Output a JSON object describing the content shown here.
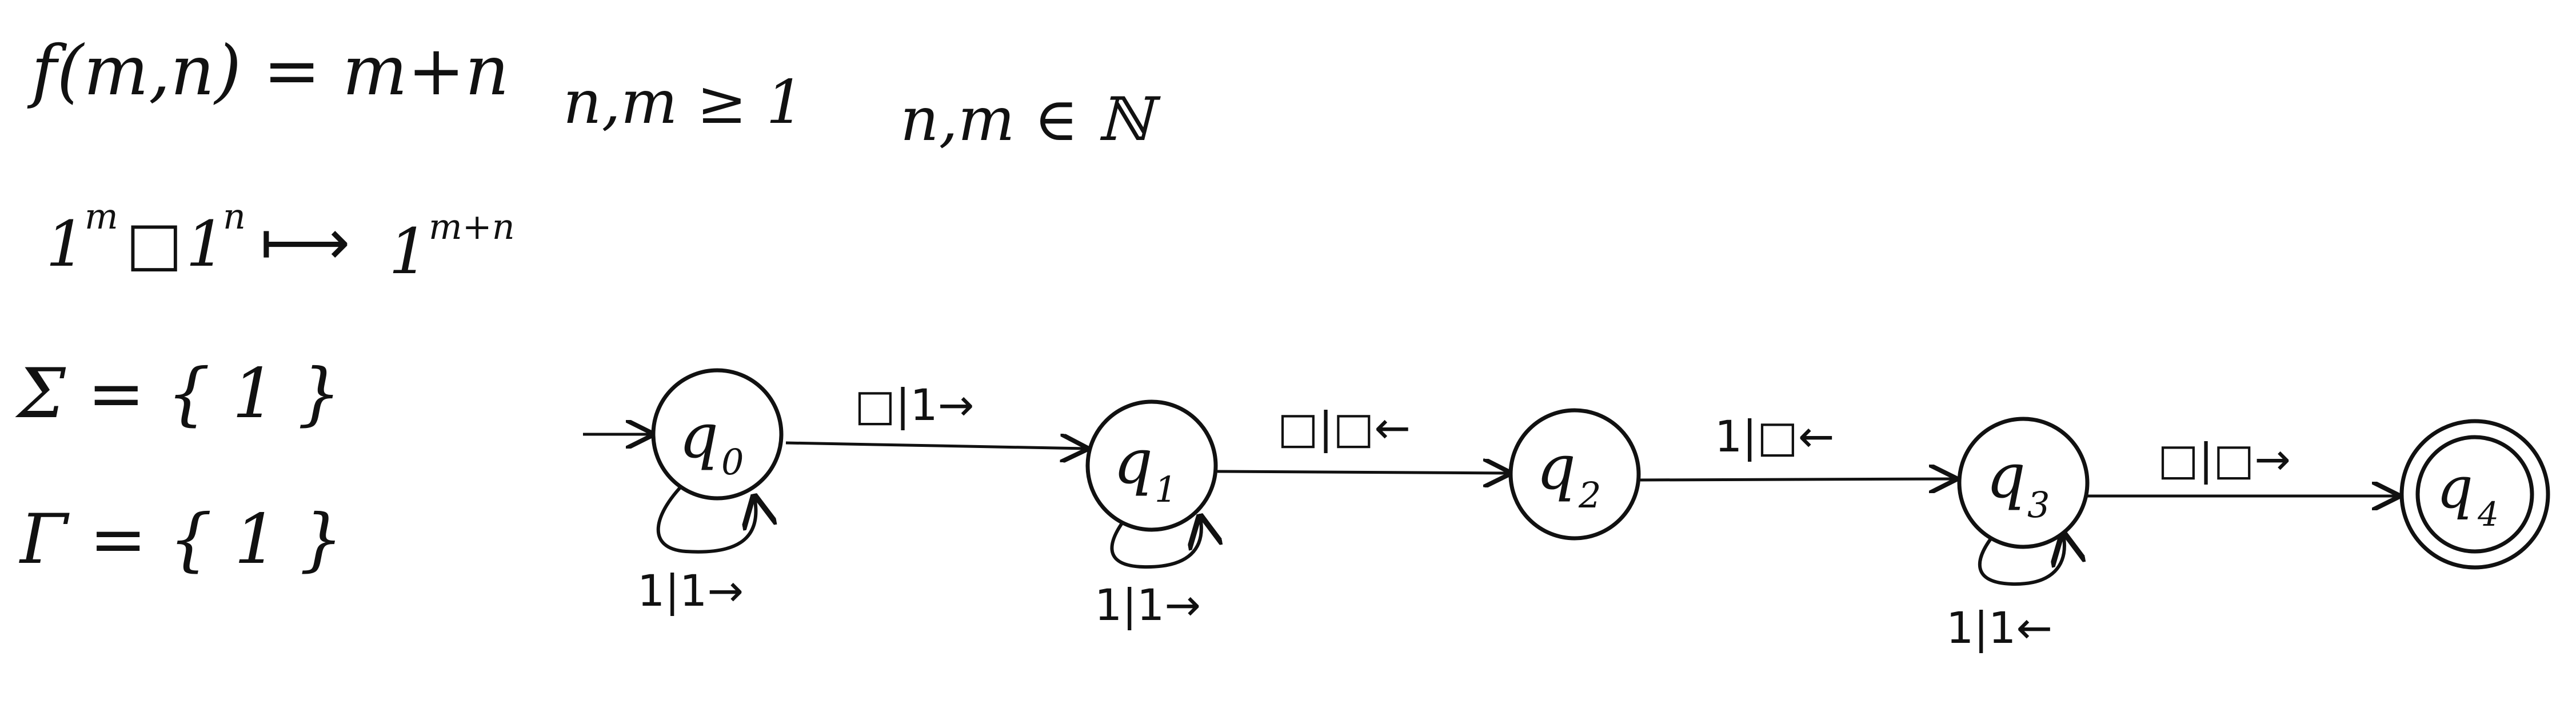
{
  "definitions": {
    "function": "f(m,n) = m+n",
    "domain_condition": "n,m ≥ 1",
    "membership": "n,m ∈ ℕ",
    "mapping": {
      "input_a": "1",
      "exp_m": "m",
      "blank": "□",
      "input_b": "1",
      "exp_n": "n",
      "arrow": "⟼",
      "output": "1",
      "exp_mn": "m+n"
    },
    "sigma": "Σ = { 1 }",
    "gamma": "Γ = { 1 }"
  },
  "machine": {
    "states": [
      {
        "id": "q0",
        "base": "q",
        "sub": "0",
        "start": true,
        "accept": false
      },
      {
        "id": "q1",
        "base": "q",
        "sub": "1",
        "start": false,
        "accept": false
      },
      {
        "id": "q2",
        "base": "q",
        "sub": "2",
        "start": false,
        "accept": false
      },
      {
        "id": "q3",
        "base": "q",
        "sub": "3",
        "start": false,
        "accept": false
      },
      {
        "id": "q4",
        "base": "q",
        "sub": "4",
        "start": false,
        "accept": true
      }
    ],
    "transitions": [
      {
        "from": "q0",
        "to": "q0",
        "label": "1|1→"
      },
      {
        "from": "q0",
        "to": "q1",
        "label": "□|1→"
      },
      {
        "from": "q1",
        "to": "q1",
        "label": "1|1→"
      },
      {
        "from": "q1",
        "to": "q2",
        "label": "□|□←"
      },
      {
        "from": "q2",
        "to": "q3",
        "label": "1|□←"
      },
      {
        "from": "q3",
        "to": "q3",
        "label": "1|1←"
      },
      {
        "from": "q3",
        "to": "q4",
        "label": "□|□→"
      }
    ]
  }
}
